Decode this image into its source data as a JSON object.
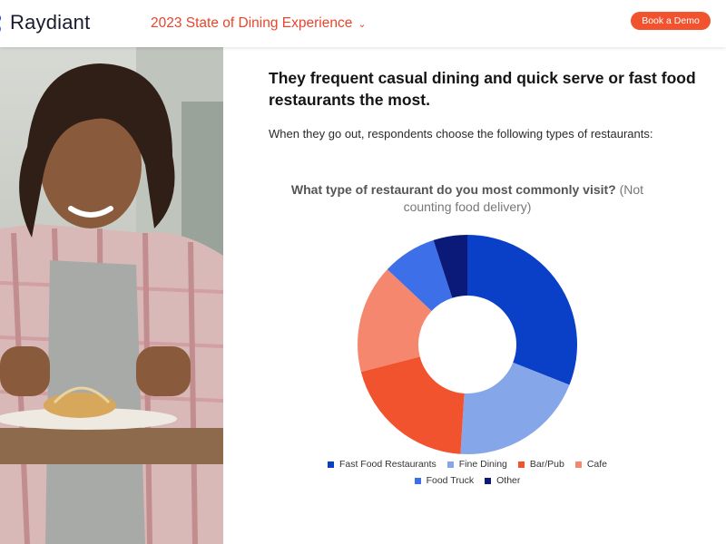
{
  "header": {
    "brand": "Raydiant",
    "report_title": "2023 State of Dining Experience",
    "cta_label": "Book a Demo"
  },
  "content": {
    "headline": "They frequent casual dining and quick serve or fast food restaurants the most.",
    "intro": "When they go out, respondents choose the following types of restaurants:"
  },
  "colors": {
    "brand": "#0a4be0",
    "accent": "#f2532f"
  },
  "chart_data": {
    "type": "pie",
    "variant": "donut",
    "title": "What type of restaurant do you most commonly visit?",
    "subtitle": "(Not counting food delivery)",
    "legend_position": "bottom",
    "categories": [
      "Fast Food Restaurants",
      "Fine Dining",
      "Bar/Pub",
      "Cafe",
      "Food Truck",
      "Other"
    ],
    "values": [
      31,
      20,
      20,
      16,
      8,
      5
    ],
    "colors": [
      "#0a3fc8",
      "#86a6ea",
      "#f2532f",
      "#f6876f",
      "#3d70e8",
      "#0b1a78"
    ]
  }
}
